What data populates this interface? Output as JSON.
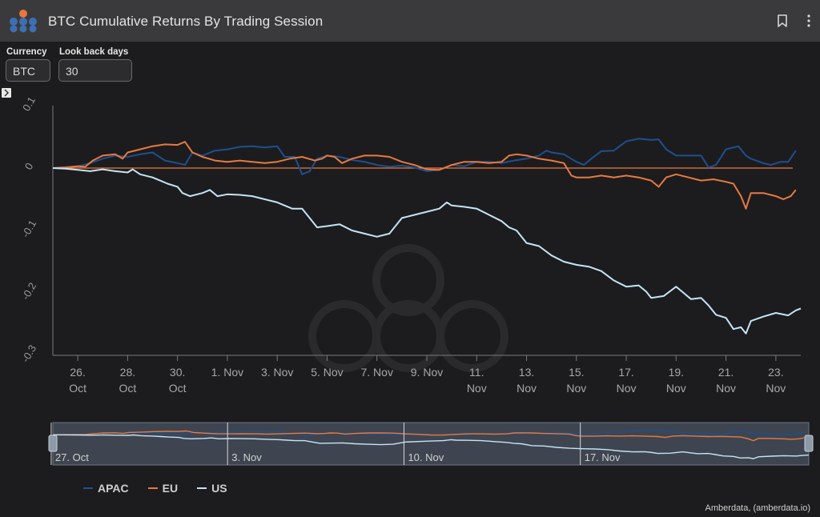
{
  "header": {
    "title": "BTC Cumulative Returns By Trading Session"
  },
  "controls": {
    "currency_label": "Currency",
    "currency_value": "BTC",
    "lookback_label": "Look back days",
    "lookback_value": "30"
  },
  "colors": {
    "APAC": "#1f4f8e",
    "EU": "#e87a40",
    "US": "#c5e4f6",
    "zero_line": "#e87a40"
  },
  "credit": "Amberdata, (amberdata.io)",
  "chart_data": {
    "type": "line",
    "title": "BTC Cumulative Returns By Trading Session",
    "xlabel": "",
    "ylabel": "",
    "x_range": [
      0,
      30
    ],
    "ylim": [
      -0.3,
      0.1
    ],
    "y_ticks": [
      0.1,
      0,
      -0.1,
      -0.2,
      -0.3
    ],
    "y_tick_labels": [
      "0.1",
      "0",
      "-0.1",
      "-0.2",
      "-0.3"
    ],
    "x_ticks": [
      {
        "x": 1,
        "l1": "26.",
        "l2": "Oct"
      },
      {
        "x": 3,
        "l1": "28.",
        "l2": "Oct"
      },
      {
        "x": 5,
        "l1": "30.",
        "l2": "Oct"
      },
      {
        "x": 7,
        "l1": "1. Nov",
        "l2": ""
      },
      {
        "x": 9,
        "l1": "3. Nov",
        "l2": ""
      },
      {
        "x": 11,
        "l1": "5. Nov",
        "l2": ""
      },
      {
        "x": 13,
        "l1": "7. Nov",
        "l2": ""
      },
      {
        "x": 15,
        "l1": "9. Nov",
        "l2": ""
      },
      {
        "x": 17,
        "l1": "11.",
        "l2": "Nov"
      },
      {
        "x": 19,
        "l1": "13.",
        "l2": "Nov"
      },
      {
        "x": 21,
        "l1": "15.",
        "l2": "Nov"
      },
      {
        "x": 23,
        "l1": "17.",
        "l2": "Nov"
      },
      {
        "x": 25,
        "l1": "19.",
        "l2": "Nov"
      },
      {
        "x": 27,
        "l1": "21.",
        "l2": "Nov"
      },
      {
        "x": 29,
        "l1": "23.",
        "l2": "Nov"
      }
    ],
    "navigator_labels": [
      {
        "x": 2,
        "label": "27. Oct"
      },
      {
        "x": 9,
        "label": "3. Nov"
      },
      {
        "x": 16,
        "label": "10. Nov"
      },
      {
        "x": 23,
        "label": "17. Nov"
      }
    ],
    "legend": [
      "APAC",
      "EU",
      "US"
    ],
    "series": [
      {
        "name": "APAC",
        "points": [
          [
            0,
            0
          ],
          [
            1,
            0.003
          ],
          [
            1.5,
            0.008
          ],
          [
            2,
            0.015
          ],
          [
            2.5,
            0.02
          ],
          [
            3,
            0.018
          ],
          [
            3.5,
            0.022
          ],
          [
            4,
            0.025
          ],
          [
            4.5,
            0.012
          ],
          [
            5,
            0.008
          ],
          [
            5.3,
            0.005
          ],
          [
            5.6,
            0.025
          ],
          [
            6,
            0.02
          ],
          [
            6.5,
            0.028
          ],
          [
            7,
            0.03
          ],
          [
            7.5,
            0.034
          ],
          [
            8,
            0.035
          ],
          [
            8.5,
            0.033
          ],
          [
            9,
            0.035
          ],
          [
            9.3,
            0.018
          ],
          [
            9.7,
            0.018
          ],
          [
            10,
            -0.01
          ],
          [
            10.3,
            -0.005
          ],
          [
            10.6,
            0.015
          ],
          [
            11,
            0.02
          ],
          [
            11.5,
            0.018
          ],
          [
            12,
            0.013
          ],
          [
            12.5,
            0.01
          ],
          [
            13,
            0.005
          ],
          [
            13.5,
            0.002
          ],
          [
            14,
            0.004
          ],
          [
            14.5,
            0.001
          ],
          [
            15,
            -0.005
          ],
          [
            15.5,
            -0.003
          ],
          [
            16,
            0.005
          ],
          [
            16.5,
            0.003
          ],
          [
            17,
            0.01
          ],
          [
            17.5,
            0.01
          ],
          [
            18,
            0.008
          ],
          [
            18.5,
            0.012
          ],
          [
            19,
            0.015
          ],
          [
            19.5,
            0.02
          ],
          [
            19.8,
            0.028
          ],
          [
            20,
            0.025
          ],
          [
            20.5,
            0.022
          ],
          [
            21,
            0.01
          ],
          [
            21.3,
            0.005
          ],
          [
            21.6,
            0.015
          ],
          [
            22,
            0.027
          ],
          [
            22.5,
            0.028
          ],
          [
            23,
            0.043
          ],
          [
            23.5,
            0.047
          ],
          [
            24,
            0.045
          ],
          [
            24.3,
            0.046
          ],
          [
            24.6,
            0.03
          ],
          [
            25,
            0.02
          ],
          [
            25.5,
            0.02
          ],
          [
            26,
            0.02
          ],
          [
            26.3,
            0.001
          ],
          [
            26.6,
            0.005
          ],
          [
            27,
            0.03
          ],
          [
            27.5,
            0.035
          ],
          [
            27.8,
            0.02
          ],
          [
            28,
            0.015
          ],
          [
            28.5,
            0.008
          ],
          [
            28.8,
            0.005
          ],
          [
            29.2,
            0.01
          ],
          [
            29.5,
            0.01
          ],
          [
            29.8,
            0.028
          ]
        ]
      },
      {
        "name": "EU",
        "points": [
          [
            0,
            0
          ],
          [
            0.5,
            0.001
          ],
          [
            1,
            0.003
          ],
          [
            1.3,
            0.002
          ],
          [
            1.6,
            0.012
          ],
          [
            2,
            0.02
          ],
          [
            2.5,
            0.022
          ],
          [
            2.8,
            0.015
          ],
          [
            3,
            0.025
          ],
          [
            3.5,
            0.03
          ],
          [
            4,
            0.035
          ],
          [
            4.5,
            0.038
          ],
          [
            5,
            0.037
          ],
          [
            5.3,
            0.042
          ],
          [
            5.6,
            0.025
          ],
          [
            6,
            0.018
          ],
          [
            6.5,
            0.012
          ],
          [
            7,
            0.01
          ],
          [
            7.5,
            0.012
          ],
          [
            8,
            0.01
          ],
          [
            8.5,
            0.008
          ],
          [
            9,
            0.01
          ],
          [
            9.5,
            0.015
          ],
          [
            10,
            0.018
          ],
          [
            10.5,
            0.012
          ],
          [
            10.8,
            0.015
          ],
          [
            11,
            0.02
          ],
          [
            11.3,
            0.018
          ],
          [
            11.6,
            0.008
          ],
          [
            12,
            0.015
          ],
          [
            12.5,
            0.02
          ],
          [
            13,
            0.02
          ],
          [
            13.5,
            0.018
          ],
          [
            14,
            0.01
          ],
          [
            14.5,
            0.005
          ],
          [
            15,
            -0.002
          ],
          [
            15.5,
            -0.003
          ],
          [
            16,
            0.005
          ],
          [
            16.5,
            0.01
          ],
          [
            17,
            0.01
          ],
          [
            17.5,
            0.008
          ],
          [
            18,
            0.01
          ],
          [
            18.3,
            0.02
          ],
          [
            18.6,
            0.022
          ],
          [
            19,
            0.02
          ],
          [
            19.5,
            0.015
          ],
          [
            20,
            0.012
          ],
          [
            20.5,
            0.008
          ],
          [
            20.8,
            -0.012
          ],
          [
            21,
            -0.015
          ],
          [
            21.5,
            -0.015
          ],
          [
            22,
            -0.012
          ],
          [
            22.5,
            -0.015
          ],
          [
            23,
            -0.012
          ],
          [
            23.5,
            -0.015
          ],
          [
            24,
            -0.02
          ],
          [
            24.3,
            -0.03
          ],
          [
            24.6,
            -0.015
          ],
          [
            25,
            -0.01
          ],
          [
            25.5,
            -0.015
          ],
          [
            26,
            -0.02
          ],
          [
            26.5,
            -0.018
          ],
          [
            27,
            -0.022
          ],
          [
            27.3,
            -0.025
          ],
          [
            27.6,
            -0.045
          ],
          [
            27.8,
            -0.065
          ],
          [
            28,
            -0.04
          ],
          [
            28.5,
            -0.04
          ],
          [
            29,
            -0.045
          ],
          [
            29.3,
            -0.05
          ],
          [
            29.6,
            -0.045
          ],
          [
            29.8,
            -0.035
          ]
        ]
      },
      {
        "name": "US",
        "points": [
          [
            0,
            0
          ],
          [
            0.5,
            -0.001
          ],
          [
            1,
            -0.003
          ],
          [
            1.5,
            -0.005
          ],
          [
            2,
            -0.002
          ],
          [
            2.5,
            -0.005
          ],
          [
            3,
            -0.007
          ],
          [
            3.2,
            -0.002
          ],
          [
            3.5,
            -0.01
          ],
          [
            4,
            -0.015
          ],
          [
            4.3,
            -0.02
          ],
          [
            4.6,
            -0.025
          ],
          [
            5,
            -0.03
          ],
          [
            5.2,
            -0.04
          ],
          [
            5.5,
            -0.045
          ],
          [
            6,
            -0.04
          ],
          [
            6.3,
            -0.035
          ],
          [
            6.6,
            -0.045
          ],
          [
            7,
            -0.042
          ],
          [
            7.5,
            -0.043
          ],
          [
            8,
            -0.045
          ],
          [
            8.5,
            -0.05
          ],
          [
            9,
            -0.055
          ],
          [
            9.3,
            -0.06
          ],
          [
            9.6,
            -0.065
          ],
          [
            10,
            -0.065
          ],
          [
            10.3,
            -0.08
          ],
          [
            10.6,
            -0.095
          ],
          [
            11,
            -0.093
          ],
          [
            11.5,
            -0.09
          ],
          [
            12,
            -0.1
          ],
          [
            12.5,
            -0.105
          ],
          [
            13,
            -0.11
          ],
          [
            13.5,
            -0.105
          ],
          [
            14,
            -0.08
          ],
          [
            14.5,
            -0.075
          ],
          [
            15,
            -0.07
          ],
          [
            15.5,
            -0.065
          ],
          [
            15.8,
            -0.055
          ],
          [
            16,
            -0.06
          ],
          [
            16.5,
            -0.062
          ],
          [
            17,
            -0.065
          ],
          [
            17.5,
            -0.075
          ],
          [
            18,
            -0.085
          ],
          [
            18.3,
            -0.095
          ],
          [
            18.6,
            -0.1
          ],
          [
            19,
            -0.12
          ],
          [
            19.5,
            -0.125
          ],
          [
            20,
            -0.14
          ],
          [
            20.5,
            -0.15
          ],
          [
            21,
            -0.155
          ],
          [
            21.5,
            -0.158
          ],
          [
            22,
            -0.165
          ],
          [
            22.5,
            -0.18
          ],
          [
            23,
            -0.19
          ],
          [
            23.5,
            -0.188
          ],
          [
            23.8,
            -0.198
          ],
          [
            24,
            -0.208
          ],
          [
            24.5,
            -0.205
          ],
          [
            25,
            -0.19
          ],
          [
            25.3,
            -0.2
          ],
          [
            25.6,
            -0.21
          ],
          [
            26,
            -0.208
          ],
          [
            26.3,
            -0.22
          ],
          [
            26.6,
            -0.235
          ],
          [
            27,
            -0.24
          ],
          [
            27.3,
            -0.258
          ],
          [
            27.6,
            -0.255
          ],
          [
            27.8,
            -0.265
          ],
          [
            28,
            -0.245
          ],
          [
            28.5,
            -0.238
          ],
          [
            29,
            -0.232
          ],
          [
            29.5,
            -0.236
          ],
          [
            29.8,
            -0.228
          ],
          [
            30,
            -0.225
          ]
        ]
      }
    ]
  }
}
